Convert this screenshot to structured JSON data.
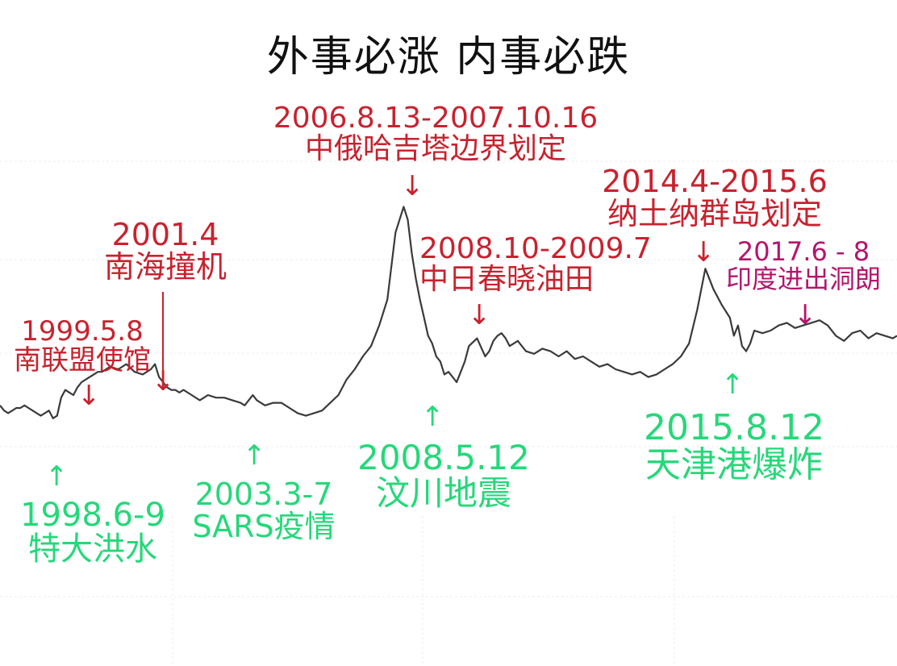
{
  "chart_data": {
    "type": "line",
    "title": "外事必涨  内事必跌",
    "xlim": [
      1997.5,
      2019.5
    ],
    "grid": true,
    "colors": {
      "line": "#3a3a3a",
      "external": "#c8222e",
      "external_alt": "#b5146c",
      "internal": "#25d879"
    },
    "series": [
      {
        "x": [
          1997.5,
          1997.6,
          1997.7,
          1997.8,
          1997.9,
          1998.0,
          1998.1,
          1998.2,
          1998.3,
          1998.4,
          1998.5,
          1998.6,
          1998.7,
          1998.8,
          1998.9,
          1999.0,
          1999.1,
          1999.2,
          1999.3,
          1999.4,
          1999.5,
          1999.6,
          1999.7,
          1999.8,
          1999.9,
          2000.0,
          2000.2,
          2000.4,
          2000.6,
          2000.8,
          2001.0,
          2001.2,
          2001.3,
          2001.4,
          2001.5,
          2001.6,
          2001.7,
          2001.8,
          2001.9,
          2002.0,
          2002.2,
          2002.4,
          2002.6,
          2002.8,
          2003.0,
          2003.2,
          2003.4,
          2003.5,
          2003.6,
          2003.7,
          2003.8,
          2004.0,
          2004.2,
          2004.4,
          2004.6,
          2004.8,
          2005.0,
          2005.2,
          2005.4,
          2005.6,
          2005.8,
          2006.0,
          2006.2,
          2006.4,
          2006.6,
          2006.8,
          2007.0,
          2007.2,
          2007.4,
          2007.5,
          2007.6,
          2007.7,
          2007.8,
          2007.9,
          2008.0,
          2008.1,
          2008.2,
          2008.3,
          2008.4,
          2008.5,
          2008.6,
          2008.7,
          2008.8,
          2008.9,
          2009.0,
          2009.2,
          2009.4,
          2009.5,
          2009.6,
          2009.7,
          2009.8,
          2009.9,
          2010.0,
          2010.2,
          2010.4,
          2010.6,
          2010.8,
          2011.0,
          2011.2,
          2011.4,
          2011.6,
          2011.8,
          2012.0,
          2012.2,
          2012.4,
          2012.6,
          2012.8,
          2013.0,
          2013.2,
          2013.4,
          2013.6,
          2013.8,
          2014.0,
          2014.2,
          2014.4,
          2014.6,
          2014.8,
          2015.0,
          2015.2,
          2015.4,
          2015.5,
          2015.6,
          2015.7,
          2015.8,
          2015.9,
          2016.0,
          2016.2,
          2016.4,
          2016.6,
          2016.8,
          2017.0,
          2017.2,
          2017.4,
          2017.6,
          2017.8,
          2018.0,
          2018.2,
          2018.4,
          2018.6,
          2018.8,
          2019.0,
          2019.2,
          2019.4,
          2019.5
        ],
        "y": [
          21,
          19,
          18,
          19,
          20,
          20,
          21,
          20,
          19,
          18,
          17,
          18,
          19,
          16,
          17,
          24,
          27,
          26,
          25,
          28,
          30,
          31,
          32,
          33,
          34,
          34,
          36,
          35,
          37,
          34,
          33,
          35,
          37,
          32,
          30,
          28,
          27,
          27,
          26,
          27,
          25,
          23,
          25,
          24,
          24,
          23,
          22,
          21,
          23,
          25,
          23,
          21,
          22,
          22,
          20,
          18,
          17,
          18,
          19,
          22,
          25,
          31,
          35,
          40,
          44,
          52,
          62,
          88,
          98,
          93,
          80,
          70,
          62,
          55,
          48,
          45,
          40,
          38,
          33,
          34,
          32,
          30,
          34,
          38,
          44,
          47,
          40,
          42,
          46,
          48,
          49,
          47,
          44,
          46,
          42,
          41,
          43,
          42,
          40,
          42,
          39,
          40,
          38,
          36,
          37,
          35,
          34,
          33,
          34,
          32,
          33,
          35,
          37,
          40,
          45,
          58,
          74,
          66,
          60,
          55,
          48,
          52,
          44,
          42,
          45,
          50,
          49,
          50,
          52,
          53,
          51,
          52,
          53,
          54,
          52,
          48,
          46,
          49,
          50,
          47,
          49,
          48,
          47,
          48
        ]
      }
    ],
    "annotations": [
      {
        "kind": "external",
        "lines": [
          "1999.5.8",
          "南联盟使馆"
        ],
        "arrow": "↓"
      },
      {
        "kind": "external",
        "lines": [
          "2001.4",
          "南海撞机"
        ],
        "arrow": "↓"
      },
      {
        "kind": "external",
        "lines": [
          "2006.8.13-2007.10.16",
          "中俄哈吉塔边界划定"
        ],
        "arrow": "↓"
      },
      {
        "kind": "external",
        "lines": [
          "2008.10-2009.7",
          "中日春晓油田"
        ],
        "arrow": "↓"
      },
      {
        "kind": "external",
        "lines": [
          "2014.4-2015.6",
          "纳土纳群岛划定"
        ],
        "arrow": "↓"
      },
      {
        "kind": "external_alt",
        "lines": [
          "2017.6 - 8",
          "印度进出洞朗"
        ],
        "arrow": "↓"
      },
      {
        "kind": "internal",
        "lines": [
          "1998.6-9",
          "特大洪水"
        ],
        "arrow": "↑"
      },
      {
        "kind": "internal",
        "lines": [
          "2003.3-7",
          "SARS疫情"
        ],
        "arrow": "↑"
      },
      {
        "kind": "internal",
        "lines": [
          "2008.5.12",
          "汶川地震"
        ],
        "arrow": "↑"
      },
      {
        "kind": "internal",
        "lines": [
          "2015.8.12",
          "天津港爆炸"
        ],
        "arrow": "↑"
      }
    ]
  }
}
